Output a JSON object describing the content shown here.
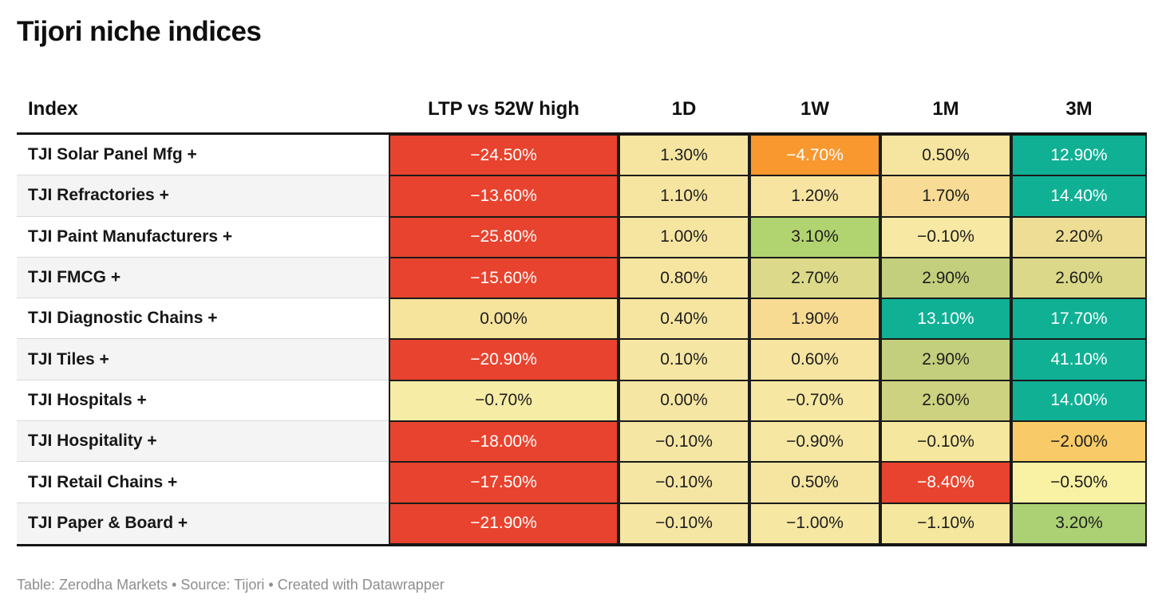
{
  "title": "Tijori niche indices",
  "columns": [
    "Index",
    "LTP vs 52W high",
    "1D",
    "1W",
    "1M",
    "3M"
  ],
  "rows": [
    {
      "label": "TJI Solar Panel Mfg +",
      "cells": [
        {
          "v": "−24.50%",
          "bg": "#e8432e",
          "fg": "#ffffff"
        },
        {
          "v": "1.30%",
          "bg": "#f6e5a1",
          "fg": "#1d1d1d"
        },
        {
          "v": "−4.70%",
          "bg": "#f8982f",
          "fg": "#ffffff"
        },
        {
          "v": "0.50%",
          "bg": "#f6e5a1",
          "fg": "#1d1d1d"
        },
        {
          "v": "12.90%",
          "bg": "#10b095",
          "fg": "#ffffff"
        }
      ]
    },
    {
      "label": "TJI Refractories +",
      "cells": [
        {
          "v": "−13.60%",
          "bg": "#e8432e",
          "fg": "#ffffff"
        },
        {
          "v": "1.10%",
          "bg": "#f6e5a1",
          "fg": "#1d1d1d"
        },
        {
          "v": "1.20%",
          "bg": "#f6e4a0",
          "fg": "#1d1d1d"
        },
        {
          "v": "1.70%",
          "bg": "#f8dc95",
          "fg": "#1d1d1d"
        },
        {
          "v": "14.40%",
          "bg": "#10b095",
          "fg": "#ffffff"
        }
      ]
    },
    {
      "label": "TJI Paint Manufacturers +",
      "cells": [
        {
          "v": "−25.80%",
          "bg": "#e8432e",
          "fg": "#ffffff"
        },
        {
          "v": "1.00%",
          "bg": "#f6e5a1",
          "fg": "#1d1d1d"
        },
        {
          "v": "3.10%",
          "bg": "#b2d470",
          "fg": "#1d1d1d"
        },
        {
          "v": "−0.10%",
          "bg": "#f7e9a3",
          "fg": "#1d1d1d"
        },
        {
          "v": "2.20%",
          "bg": "#eedd94",
          "fg": "#1d1d1d"
        }
      ]
    },
    {
      "label": "TJI FMCG +",
      "cells": [
        {
          "v": "−15.60%",
          "bg": "#e8432e",
          "fg": "#ffffff"
        },
        {
          "v": "0.80%",
          "bg": "#f6e5a1",
          "fg": "#1d1d1d"
        },
        {
          "v": "2.70%",
          "bg": "#dcda8a",
          "fg": "#1d1d1d"
        },
        {
          "v": "2.90%",
          "bg": "#c3cf7c",
          "fg": "#1d1d1d"
        },
        {
          "v": "2.60%",
          "bg": "#dbd88a",
          "fg": "#1d1d1d"
        }
      ]
    },
    {
      "label": "TJI Diagnostic Chains +",
      "cells": [
        {
          "v": "0.00%",
          "bg": "#f6e39c",
          "fg": "#1d1d1d"
        },
        {
          "v": "0.40%",
          "bg": "#f6e5a1",
          "fg": "#1d1d1d"
        },
        {
          "v": "1.90%",
          "bg": "#f8db93",
          "fg": "#1d1d1d"
        },
        {
          "v": "13.10%",
          "bg": "#10b095",
          "fg": "#ffffff"
        },
        {
          "v": "17.70%",
          "bg": "#10b095",
          "fg": "#ffffff"
        }
      ]
    },
    {
      "label": "TJI Tiles +",
      "cells": [
        {
          "v": "−20.90%",
          "bg": "#e8432e",
          "fg": "#ffffff"
        },
        {
          "v": "0.10%",
          "bg": "#f6e6a3",
          "fg": "#1d1d1d"
        },
        {
          "v": "0.60%",
          "bg": "#f6e4a0",
          "fg": "#1d1d1d"
        },
        {
          "v": "2.90%",
          "bg": "#c3cf7c",
          "fg": "#1d1d1d"
        },
        {
          "v": "41.10%",
          "bg": "#10b095",
          "fg": "#ffffff"
        }
      ]
    },
    {
      "label": "TJI Hospitals +",
      "cells": [
        {
          "v": "−0.70%",
          "bg": "#f7eca6",
          "fg": "#1d1d1d"
        },
        {
          "v": "0.00%",
          "bg": "#f6e6a3",
          "fg": "#1d1d1d"
        },
        {
          "v": "−0.70%",
          "bg": "#f6e7a3",
          "fg": "#1d1d1d"
        },
        {
          "v": "2.60%",
          "bg": "#cdd280",
          "fg": "#1d1d1d"
        },
        {
          "v": "14.00%",
          "bg": "#10b095",
          "fg": "#ffffff"
        }
      ]
    },
    {
      "label": "TJI Hospitality +",
      "cells": [
        {
          "v": "−18.00%",
          "bg": "#e8432e",
          "fg": "#ffffff"
        },
        {
          "v": "−0.10%",
          "bg": "#f6e6a3",
          "fg": "#1d1d1d"
        },
        {
          "v": "−0.90%",
          "bg": "#f6e7a3",
          "fg": "#1d1d1d"
        },
        {
          "v": "−0.10%",
          "bg": "#f5e79d",
          "fg": "#1d1d1d"
        },
        {
          "v": "−2.00%",
          "bg": "#f8cb68",
          "fg": "#1d1d1d"
        }
      ]
    },
    {
      "label": "TJI Retail Chains +",
      "cells": [
        {
          "v": "−17.50%",
          "bg": "#e8432e",
          "fg": "#ffffff"
        },
        {
          "v": "−0.10%",
          "bg": "#f6e6a3",
          "fg": "#1d1d1d"
        },
        {
          "v": "0.50%",
          "bg": "#f6e5a1",
          "fg": "#1d1d1d"
        },
        {
          "v": "−8.40%",
          "bg": "#e8432e",
          "fg": "#ffffff"
        },
        {
          "v": "−0.50%",
          "bg": "#f9f1a3",
          "fg": "#1d1d1d"
        }
      ]
    },
    {
      "label": "TJI Paper & Board +",
      "cells": [
        {
          "v": "−21.90%",
          "bg": "#e8432e",
          "fg": "#ffffff"
        },
        {
          "v": "−0.10%",
          "bg": "#f6e6a3",
          "fg": "#1d1d1d"
        },
        {
          "v": "−1.00%",
          "bg": "#f6e7a3",
          "fg": "#1d1d1d"
        },
        {
          "v": "−1.10%",
          "bg": "#f5e79d",
          "fg": "#1d1d1d"
        },
        {
          "v": "3.20%",
          "bg": "#abd174",
          "fg": "#1d1d1d"
        }
      ]
    }
  ],
  "footer": "Table: Zerodha Markets • Source: Tijori • Created with Datawrapper",
  "palette": {
    "negative_strong": "#e8432e",
    "negative_mid": "#f8982f",
    "neutral_yellow": "#f6e5a1",
    "positive_mid": "#b2d470",
    "positive_strong": "#10b095",
    "header_rule": "#151514",
    "alt_row": "#f4f4f4",
    "footer_text": "#8e8e8e"
  },
  "chart_data": {
    "type": "table",
    "title": "Tijori niche indices",
    "columns": [
      "Index",
      "LTP vs 52W high",
      "1D",
      "1W",
      "1M",
      "3M"
    ],
    "units": "%",
    "rows": [
      [
        "TJI Solar Panel Mfg +",
        -24.5,
        1.3,
        -4.7,
        0.5,
        12.9
      ],
      [
        "TJI Refractories +",
        -13.6,
        1.1,
        1.2,
        1.7,
        14.4
      ],
      [
        "TJI Paint Manufacturers +",
        -25.8,
        1.0,
        3.1,
        -0.1,
        2.2
      ],
      [
        "TJI FMCG +",
        -15.6,
        0.8,
        2.7,
        2.9,
        2.6
      ],
      [
        "TJI Diagnostic Chains +",
        0.0,
        0.4,
        1.9,
        13.1,
        17.7
      ],
      [
        "TJI Tiles +",
        -20.9,
        0.1,
        0.6,
        2.9,
        41.1
      ],
      [
        "TJI Hospitals +",
        -0.7,
        0.0,
        -0.7,
        2.6,
        14.0
      ],
      [
        "TJI Hospitality +",
        -18.0,
        -0.1,
        -0.9,
        -0.1,
        -2.0
      ],
      [
        "TJI Retail Chains +",
        -17.5,
        -0.1,
        0.5,
        -8.4,
        -0.5
      ],
      [
        "TJI Paper & Board +",
        -21.9,
        -0.1,
        -1.0,
        -1.1,
        3.2
      ]
    ],
    "notes": "Heatmap-colored table: red = strongly negative, orange/yellow = mildly negative to flat, green = positive, teal = strongly positive",
    "footer": "Table: Zerodha Markets • Source: Tijori • Created with Datawrapper"
  }
}
